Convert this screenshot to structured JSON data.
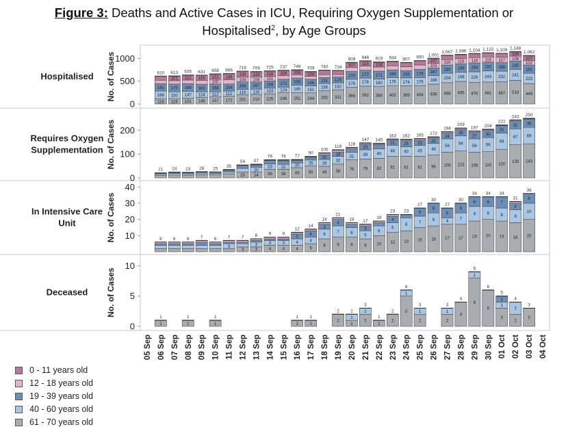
{
  "title": {
    "prefix": "Figure 3:",
    "line1": " Deaths and Active Cases in ICU, Requiring Oxygen Supplementation or",
    "line2": "Hospitalised",
    "sup": "2",
    "line2_rest": ", by Age Groups"
  },
  "chart_data": {
    "type": "bar",
    "stacked": true,
    "dates": [
      "05 Sep",
      "06 Sep",
      "07 Sep",
      "08 Sep",
      "09 Sep",
      "10 Sep",
      "11 Sep",
      "12 Sep",
      "13 Sep",
      "14 Sep",
      "15 Sep",
      "16 Sep",
      "17 Sep",
      "18 Sep",
      "19 Sep",
      "20 Sep",
      "21 Sep",
      "22 Sep",
      "23 Sep",
      "24 Sep",
      "25 Sep",
      "26 Sep",
      "27 Sep",
      "28 Sep",
      "29 Sep",
      "30 Sep",
      "01 Oct",
      "02 Oct",
      "03 Oct",
      "04 Oct"
    ],
    "ylabel": "No. of Cases",
    "legend": [
      {
        "name": "0 - 11 years old",
        "color": "#b5799a"
      },
      {
        "name": "12 - 18 years old",
        "color": "#e2b3c9"
      },
      {
        "name": "19 - 39 years old",
        "color": "#6d8fb5"
      },
      {
        "name": "40 - 60 years old",
        "color": "#a9c7e5"
      },
      {
        "name": "61 - 70 years old",
        "color": "#a9acb1"
      }
    ],
    "panels": [
      {
        "label": "Hospitalised",
        "ylim": [
          0,
          1200
        ],
        "yticks": [
          "0",
          "500",
          "1000"
        ],
        "ytick_values": [
          0,
          500,
          1000
        ],
        "totals": [
          null,
          "610",
          "613",
          "635",
          "631",
          "658",
          "666",
          "719",
          "709",
          "725",
          "737",
          "748",
          "709",
          "740",
          "734",
          "909",
          "946",
          "919",
          "934",
          "907",
          "950",
          "1,001",
          "1,067",
          "1,086",
          "1,104",
          "1,122",
          "1,109",
          "1,148",
          "1,062",
          null
        ],
        "segments": [
          [
            null,
            [
              118,
              166,
              161,
              76,
              89
            ],
            [
              118,
              150,
              170,
              74,
              101
            ],
            [
              131,
              147,
              169,
              76,
              112
            ],
            [
              146,
              124,
              163,
              83,
              115
            ],
            [
              157,
              112,
              168,
              100,
              121
            ],
            [
              172,
              112,
              154,
              92,
              136
            ],
            [
              202,
              119,
              164,
              104,
              130
            ],
            [
              210,
              116,
              157,
              108,
              118
            ],
            [
              225,
              123,
              158,
              101,
              118
            ],
            [
              246,
              124,
              172,
              79,
              116
            ],
            [
              251,
              160,
              158,
              71,
              108
            ],
            [
              244,
              151,
              146,
              64,
              104
            ],
            [
              292,
              156,
              131,
              64,
              97
            ],
            [
              311,
              152,
              129,
              55,
              87
            ],
            [
              366,
              176,
              170,
              90,
              107
            ],
            [
              392,
              176,
              172,
              91,
              115
            ],
            [
              388,
              160,
              171,
              92,
              108
            ],
            [
              403,
              176,
              169,
              90,
              96
            ],
            [
              399,
              174,
              158,
              87,
              89
            ],
            [
              404,
              176,
              179,
              97,
              94
            ],
            [
              436,
              188,
              167,
              103,
              107
            ],
            [
              468,
              204,
              183,
              119,
              93
            ],
            [
              495,
              199,
              189,
              116,
              87
            ],
            [
              476,
              229,
              194,
              118,
              87
            ],
            [
              481,
              243,
              192,
              115,
              91
            ],
            [
              487,
              232,
              188,
              117,
              85
            ],
            [
              519,
              241,
              182,
              106,
              100
            ],
            [
              449,
              223,
              181,
              102,
              107
            ],
            null
          ]
        ]
      },
      {
        "label": "Requires Oxygen\nSupplementation",
        "ylim": [
          0,
          270
        ],
        "yticks": [
          "0",
          "100",
          "200"
        ],
        "ytick_values": [
          0,
          100,
          200
        ],
        "totals": [
          null,
          "21",
          "24",
          "23",
          "26",
          "25",
          "35",
          "54",
          "57",
          "76",
          "76",
          "77",
          "90",
          "105",
          "118",
          "128",
          "147",
          "145",
          "163",
          "162",
          "165",
          "172",
          "194",
          "209",
          "197",
          "204",
          "222",
          "243",
          "250",
          null
        ],
        "segments": [
          [
            null,
            [
              10,
              6,
              4,
              1,
              0
            ],
            [
              12,
              7,
              4,
              1,
              0
            ],
            [
              11,
              6,
              5,
              1,
              0
            ],
            [
              13,
              7,
              5,
              1,
              0
            ],
            [
              13,
              6,
              5,
              1,
              0
            ],
            [
              17,
              8,
              7,
              2,
              1
            ],
            [
              25,
              15,
              10,
              3,
              1
            ],
            [
              24,
              20,
              10,
              2,
              1
            ],
            [
              36,
              23,
              14,
              2,
              1
            ],
            [
              36,
              21,
              15,
              3,
              1
            ],
            [
              43,
              20,
              11,
              2,
              1
            ],
            [
              50,
              25,
              11,
              3,
              1
            ],
            [
              49,
              28,
              20,
              6,
              2
            ],
            [
              58,
              32,
              19,
              7,
              2
            ],
            [
              76,
              31,
              15,
              5,
              1
            ],
            [
              79,
              39,
              23,
              5,
              1
            ],
            [
              82,
              40,
              18,
              4,
              1
            ],
            [
              91,
              46,
              21,
              4,
              1
            ],
            [
              91,
              40,
              25,
              5,
              1
            ],
            [
              91,
              45,
              22,
              6,
              1
            ],
            [
              96,
              49,
              22,
              4,
              1
            ],
            [
              108,
              56,
              24,
              5,
              1
            ],
            [
              113,
              64,
              26,
              5,
              1
            ],
            [
              108,
              56,
              27,
              5,
              1
            ],
            [
              110,
              59,
              30,
              4,
              1
            ],
            [
              120,
              68,
              31,
              2,
              1
            ],
            [
              139,
              67,
              32,
              4,
              1
            ],
            [
              143,
              69,
              35,
              2,
              1
            ],
            null
          ]
        ]
      },
      {
        "label": "In Intensive Care\nUnit",
        "ylim": [
          0,
          41
        ],
        "yticks": [
          "10",
          "20",
          "30",
          "40"
        ],
        "ytick_values": [
          10,
          20,
          30,
          40
        ],
        "totals": [
          null,
          "6",
          "6",
          "6",
          "7",
          "6",
          "7",
          "7",
          "8",
          "9",
          "9",
          "12",
          "14",
          "18",
          "21",
          "18",
          "17",
          "19",
          "23",
          "23",
          "27",
          "30",
          "27",
          "30",
          "34",
          "34",
          "34",
          "31",
          "36",
          null
        ],
        "segments": [
          [
            null,
            [
              2,
              2,
              1,
              1,
              0
            ],
            [
              2,
              2,
              1,
              1,
              0
            ],
            [
              2,
              2,
              1,
              1,
              0
            ],
            [
              2,
              2,
              2,
              1,
              0
            ],
            [
              2,
              2,
              1,
              1,
              0
            ],
            [
              2,
              3,
              1,
              1,
              0
            ],
            [
              3,
              2,
              1,
              1,
              0
            ],
            [
              3,
              3,
              1,
              1,
              0
            ],
            [
              4,
              3,
              1,
              1,
              0
            ],
            [
              4,
              3,
              1,
              1,
              0
            ],
            [
              4,
              4,
              3,
              1,
              0
            ],
            [
              5,
              4,
              4,
              1,
              0
            ],
            [
              8,
              6,
              3,
              1,
              0
            ],
            [
              9,
              7,
              4,
              1,
              0
            ],
            [
              9,
              6,
              2,
              1,
              0
            ],
            [
              8,
              5,
              3,
              1,
              0
            ],
            [
              10,
              6,
              2,
              1,
              0
            ],
            [
              12,
              6,
              4,
              1,
              0
            ],
            [
              13,
              8,
              2,
              0,
              0
            ],
            [
              15,
              7,
              5,
              0,
              0
            ],
            [
              16,
              8,
              6,
              0,
              0
            ],
            [
              17,
              4,
              6,
              0,
              0
            ],
            [
              17,
              7,
              6,
              0,
              0
            ],
            [
              19,
              9,
              6,
              0,
              0
            ],
            [
              20,
              8,
              6,
              0,
              0
            ],
            [
              19,
              8,
              7,
              0,
              0
            ],
            [
              18,
              8,
              4,
              1,
              0
            ],
            [
              20,
              10,
              6,
              0,
              0
            ],
            null
          ]
        ]
      },
      {
        "label": "Deceased",
        "ylim": [
          0,
          10.5
        ],
        "yticks": [
          "0",
          "5",
          "10"
        ],
        "ytick_values": [
          0,
          5,
          10
        ],
        "totals": [
          null,
          "1",
          null,
          "1",
          null,
          "1",
          null,
          null,
          null,
          null,
          null,
          "1",
          "1",
          null,
          "2",
          "2",
          "3",
          "1",
          "2",
          "6",
          "3",
          null,
          "3",
          "4",
          "9",
          "6",
          "5",
          "4",
          "3",
          null
        ],
        "segments": [
          [
            null,
            [
              1,
              0,
              0,
              0,
              0
            ],
            null,
            [
              1,
              0,
              0,
              0,
              0
            ],
            null,
            [
              1,
              0,
              0,
              0,
              0
            ],
            null,
            null,
            null,
            null,
            null,
            [
              1,
              0,
              0,
              0,
              0
            ],
            [
              1,
              0,
              0,
              0,
              0
            ],
            null,
            [
              2,
              0,
              0,
              0,
              0
            ],
            [
              1,
              1,
              0,
              0,
              0
            ],
            [
              2,
              1,
              0,
              0,
              0
            ],
            [
              1,
              0,
              0,
              0,
              0
            ],
            [
              2,
              0,
              0,
              0,
              0
            ],
            [
              5,
              1,
              0,
              0,
              0
            ],
            [
              2,
              1,
              0,
              0,
              0
            ],
            null,
            [
              2,
              1,
              0,
              0,
              0
            ],
            [
              4,
              0,
              0,
              0,
              0
            ],
            [
              8,
              1,
              0,
              0,
              0
            ],
            [
              6,
              0,
              0,
              0,
              0
            ],
            [
              3,
              1,
              1,
              0,
              0
            ],
            [
              2,
              2,
              0,
              0,
              0
            ],
            [
              3,
              0,
              0,
              0,
              0
            ],
            null
          ]
        ]
      }
    ]
  }
}
